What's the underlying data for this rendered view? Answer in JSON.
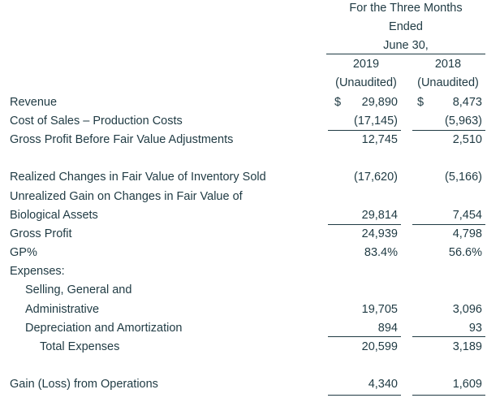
{
  "header": {
    "period_line1": "For the Three Months",
    "period_line2": "Ended",
    "period_line3": "June 30,",
    "years": [
      "2019",
      "2018"
    ],
    "audit": [
      "(Unaudited)",
      "(Unaudited)"
    ]
  },
  "rows": {
    "revenue": {
      "label": "Revenue",
      "cur": [
        "$",
        "$"
      ],
      "values": [
        "29,890",
        "8,473"
      ]
    },
    "cost_of_sales": {
      "label": "Cost of Sales – Production Costs",
      "values": [
        "(17,145)",
        "(5,963)"
      ]
    },
    "gross_profit_before": {
      "label": "Gross Profit Before Fair Value Adjustments",
      "values": [
        "12,745",
        "2,510"
      ]
    },
    "realized": {
      "label": "Realized Changes in Fair Value of Inventory Sold",
      "values": [
        "(17,620)",
        "(5,166)"
      ]
    },
    "unrealized": {
      "label1": "Unrealized Gain on Changes in Fair Value of",
      "label2": "Biological Assets",
      "values": [
        "29,814",
        "7,454"
      ]
    },
    "gross_profit": {
      "label": "Gross Profit",
      "values": [
        "24,939",
        "4,798"
      ]
    },
    "gp_pct": {
      "label": "GP%",
      "values": [
        "83.4%",
        "56.6%"
      ]
    },
    "expenses_heading": {
      "label": "Expenses:"
    },
    "sga": {
      "label1": "Selling, General and",
      "label2": "Administrative",
      "values": [
        "19,705",
        "3,096"
      ]
    },
    "dep_amort": {
      "label": "Depreciation and Amortization",
      "values": [
        "894",
        "93"
      ]
    },
    "total_expenses": {
      "label": "Total Expenses",
      "values": [
        "20,599",
        "3,189"
      ]
    },
    "gain_loss": {
      "label": "Gain (Loss) from Operations",
      "values": [
        "4,340",
        "1,609"
      ]
    }
  }
}
